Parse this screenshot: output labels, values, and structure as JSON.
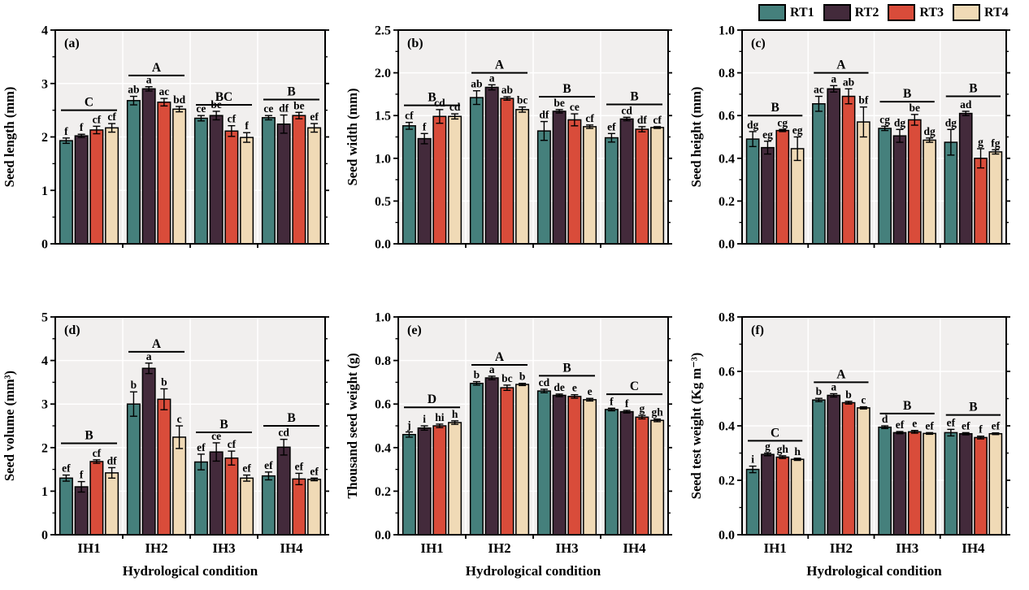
{
  "style": {
    "plot_bg": "#f1efee",
    "grid_color": "#ffffff",
    "axis_color": "#000000"
  },
  "legend": {
    "items": [
      {
        "label": "RT1",
        "color": "#45807C"
      },
      {
        "label": "RT2",
        "color": "#432A3B"
      },
      {
        "label": "RT3",
        "color": "#D94C3A"
      },
      {
        "label": "RT4",
        "color": "#F0DAB6"
      }
    ]
  },
  "shared": {
    "xlabel": "Hydrological condition",
    "categories": [
      "IH1",
      "IH2",
      "IH3",
      "IH4"
    ],
    "series": [
      "RT1",
      "RT2",
      "RT3",
      "RT4"
    ]
  },
  "chart_data": [
    {
      "type": "bar",
      "panel": "(a)",
      "ylabel": "Seed length (mm)",
      "ylim": [
        0,
        4
      ],
      "minor_step": 0.5,
      "yticks": [
        {
          "v": 0,
          "t": "0"
        },
        {
          "v": 1,
          "t": "1"
        },
        {
          "v": 2,
          "t": "2"
        },
        {
          "v": 3,
          "t": "3"
        },
        {
          "v": 4,
          "t": "4"
        }
      ],
      "groups": [
        {
          "category": "IH1",
          "sig_letter": "C",
          "sig_line_y": 2.5,
          "bars": [
            {
              "value": 1.93,
              "err": 0.05,
              "letter": "f"
            },
            {
              "value": 2.02,
              "err": 0.03,
              "letter": "f"
            },
            {
              "value": 2.13,
              "err": 0.07,
              "letter": "cf"
            },
            {
              "value": 2.17,
              "err": 0.08,
              "letter": "cf"
            }
          ]
        },
        {
          "category": "IH2",
          "sig_letter": "A",
          "sig_line_y": 3.15,
          "bars": [
            {
              "value": 2.68,
              "err": 0.08,
              "letter": "ab"
            },
            {
              "value": 2.9,
              "err": 0.04,
              "letter": "a"
            },
            {
              "value": 2.65,
              "err": 0.07,
              "letter": "ac"
            },
            {
              "value": 2.52,
              "err": 0.05,
              "letter": "bd"
            }
          ]
        },
        {
          "category": "IH3",
          "sig_letter": "BC",
          "sig_line_y": 2.6,
          "bars": [
            {
              "value": 2.35,
              "err": 0.05,
              "letter": "ce"
            },
            {
              "value": 2.4,
              "err": 0.08,
              "letter": "be"
            },
            {
              "value": 2.11,
              "err": 0.1,
              "letter": "cf"
            },
            {
              "value": 1.99,
              "err": 0.09,
              "letter": "f"
            }
          ]
        },
        {
          "category": "IH4",
          "sig_letter": "B",
          "sig_line_y": 2.7,
          "bars": [
            {
              "value": 2.36,
              "err": 0.04,
              "letter": "ce"
            },
            {
              "value": 2.24,
              "err": 0.17,
              "letter": "df"
            },
            {
              "value": 2.4,
              "err": 0.06,
              "letter": "be"
            },
            {
              "value": 2.17,
              "err": 0.08,
              "letter": "ef"
            }
          ]
        }
      ]
    },
    {
      "type": "bar",
      "panel": "(b)",
      "ylabel": "Seed width (mm)",
      "ylim": [
        0,
        2.5
      ],
      "minor_step": 0.25,
      "yticks": [
        {
          "v": 0,
          "t": "0.0"
        },
        {
          "v": 0.5,
          "t": "0.5"
        },
        {
          "v": 1,
          "t": "1.0"
        },
        {
          "v": 1.5,
          "t": "1.5"
        },
        {
          "v": 2,
          "t": "2.0"
        },
        {
          "v": 2.5,
          "t": "2.5"
        }
      ],
      "groups": [
        {
          "category": "IH1",
          "sig_letter": "B",
          "sig_line_y": 1.62,
          "bars": [
            {
              "value": 1.38,
              "err": 0.04,
              "letter": "cf"
            },
            {
              "value": 1.23,
              "err": 0.06,
              "letter": "f"
            },
            {
              "value": 1.49,
              "err": 0.08,
              "letter": "cd"
            },
            {
              "value": 1.49,
              "err": 0.03,
              "letter": "cd"
            }
          ]
        },
        {
          "category": "IH2",
          "sig_letter": "A",
          "sig_line_y": 2.0,
          "bars": [
            {
              "value": 1.71,
              "err": 0.08,
              "letter": "ab"
            },
            {
              "value": 1.83,
              "err": 0.03,
              "letter": "a"
            },
            {
              "value": 1.7,
              "err": 0.02,
              "letter": "ab"
            },
            {
              "value": 1.57,
              "err": 0.03,
              "letter": "bc"
            }
          ]
        },
        {
          "category": "IH3",
          "sig_letter": "B",
          "sig_line_y": 1.72,
          "bars": [
            {
              "value": 1.32,
              "err": 0.11,
              "letter": "df"
            },
            {
              "value": 1.55,
              "err": 0.02,
              "letter": "be"
            },
            {
              "value": 1.45,
              "err": 0.07,
              "letter": "ce"
            },
            {
              "value": 1.37,
              "err": 0.02,
              "letter": "cf"
            }
          ]
        },
        {
          "category": "IH4",
          "sig_letter": "B",
          "sig_line_y": 1.63,
          "bars": [
            {
              "value": 1.24,
              "err": 0.05,
              "letter": "ef"
            },
            {
              "value": 1.46,
              "err": 0.02,
              "letter": "cd"
            },
            {
              "value": 1.34,
              "err": 0.03,
              "letter": "df"
            },
            {
              "value": 1.36,
              "err": 0.01,
              "letter": "cf"
            }
          ]
        }
      ]
    },
    {
      "type": "bar",
      "panel": "(c)",
      "ylabel": "Seed height (mm)",
      "ylim": [
        0,
        1.0
      ],
      "minor_step": 0.1,
      "yticks": [
        {
          "v": 0,
          "t": "0.0"
        },
        {
          "v": 0.2,
          "t": "0.2"
        },
        {
          "v": 0.4,
          "t": "0.4"
        },
        {
          "v": 0.6,
          "t": "0.6"
        },
        {
          "v": 0.8,
          "t": "0.8"
        },
        {
          "v": 1,
          "t": "1.0"
        }
      ],
      "groups": [
        {
          "category": "IH1",
          "sig_letter": "B",
          "sig_line_y": 0.6,
          "bars": [
            {
              "value": 0.49,
              "err": 0.035,
              "letter": "dg"
            },
            {
              "value": 0.45,
              "err": 0.03,
              "letter": "eg"
            },
            {
              "value": 0.53,
              "err": 0.005,
              "letter": "cg"
            },
            {
              "value": 0.445,
              "err": 0.055,
              "letter": "eg"
            }
          ]
        },
        {
          "category": "IH2",
          "sig_letter": "A",
          "sig_line_y": 0.8,
          "bars": [
            {
              "value": 0.655,
              "err": 0.035,
              "letter": "ac"
            },
            {
              "value": 0.725,
              "err": 0.015,
              "letter": "a"
            },
            {
              "value": 0.69,
              "err": 0.035,
              "letter": "ab"
            },
            {
              "value": 0.57,
              "err": 0.07,
              "letter": "bf"
            }
          ]
        },
        {
          "category": "IH3",
          "sig_letter": "B",
          "sig_line_y": 0.665,
          "bars": [
            {
              "value": 0.54,
              "err": 0.01,
              "letter": "cg"
            },
            {
              "value": 0.505,
              "err": 0.03,
              "letter": "dg"
            },
            {
              "value": 0.58,
              "err": 0.025,
              "letter": "be"
            },
            {
              "value": 0.485,
              "err": 0.01,
              "letter": "dg"
            }
          ]
        },
        {
          "category": "IH4",
          "sig_letter": "B",
          "sig_line_y": 0.69,
          "bars": [
            {
              "value": 0.475,
              "err": 0.06,
              "letter": "dg"
            },
            {
              "value": 0.61,
              "err": 0.01,
              "letter": "ad"
            },
            {
              "value": 0.4,
              "err": 0.045,
              "letter": "g"
            },
            {
              "value": 0.43,
              "err": 0.01,
              "letter": "fg"
            }
          ]
        }
      ]
    },
    {
      "type": "bar",
      "panel": "(d)",
      "ylabel": "Seed volume (mm³)",
      "ylim": [
        0,
        5
      ],
      "minor_step": 0.5,
      "yticks": [
        {
          "v": 0,
          "t": "0"
        },
        {
          "v": 1,
          "t": "1"
        },
        {
          "v": 2,
          "t": "2"
        },
        {
          "v": 3,
          "t": "3"
        },
        {
          "v": 4,
          "t": "4"
        },
        {
          "v": 5,
          "t": "5"
        }
      ],
      "groups": [
        {
          "category": "IH1",
          "sig_letter": "B",
          "sig_line_y": 2.1,
          "bars": [
            {
              "value": 1.3,
              "err": 0.07,
              "letter": "ef"
            },
            {
              "value": 1.1,
              "err": 0.12,
              "letter": "f"
            },
            {
              "value": 1.68,
              "err": 0.04,
              "letter": "cf"
            },
            {
              "value": 1.42,
              "err": 0.12,
              "letter": "df"
            }
          ]
        },
        {
          "category": "IH2",
          "sig_letter": "A",
          "sig_line_y": 4.2,
          "bars": [
            {
              "value": 3.0,
              "err": 0.28,
              "letter": "b"
            },
            {
              "value": 3.82,
              "err": 0.12,
              "letter": "a"
            },
            {
              "value": 3.11,
              "err": 0.24,
              "letter": "b"
            },
            {
              "value": 2.24,
              "err": 0.26,
              "letter": "c"
            }
          ]
        },
        {
          "category": "IH3",
          "sig_letter": "B",
          "sig_line_y": 2.35,
          "bars": [
            {
              "value": 1.67,
              "err": 0.18,
              "letter": "ef"
            },
            {
              "value": 1.9,
              "err": 0.21,
              "letter": "ce"
            },
            {
              "value": 1.76,
              "err": 0.16,
              "letter": "cf"
            },
            {
              "value": 1.3,
              "err": 0.07,
              "letter": "ef"
            }
          ]
        },
        {
          "category": "IH4",
          "sig_letter": "B",
          "sig_line_y": 2.5,
          "bars": [
            {
              "value": 1.35,
              "err": 0.09,
              "letter": "ef"
            },
            {
              "value": 2.01,
              "err": 0.18,
              "letter": "cd"
            },
            {
              "value": 1.28,
              "err": 0.13,
              "letter": "ef"
            },
            {
              "value": 1.27,
              "err": 0.03,
              "letter": "ef"
            }
          ]
        }
      ]
    },
    {
      "type": "bar",
      "panel": "(e)",
      "ylabel": "Thousand seed weight (g)",
      "ylim": [
        0,
        1.0
      ],
      "minor_step": 0.1,
      "yticks": [
        {
          "v": 0,
          "t": "0.0"
        },
        {
          "v": 0.2,
          "t": "0.2"
        },
        {
          "v": 0.4,
          "t": "0.4"
        },
        {
          "v": 0.6,
          "t": "0.6"
        },
        {
          "v": 0.8,
          "t": "0.8"
        },
        {
          "v": 1,
          "t": "1.0"
        }
      ],
      "groups": [
        {
          "category": "IH1",
          "sig_letter": "D",
          "sig_line_y": 0.585,
          "bars": [
            {
              "value": 0.46,
              "err": 0.012,
              "letter": "j"
            },
            {
              "value": 0.49,
              "err": 0.01,
              "letter": "i"
            },
            {
              "value": 0.5,
              "err": 0.008,
              "letter": "hi"
            },
            {
              "value": 0.515,
              "err": 0.008,
              "letter": "h"
            }
          ]
        },
        {
          "category": "IH2",
          "sig_letter": "A",
          "sig_line_y": 0.78,
          "bars": [
            {
              "value": 0.695,
              "err": 0.008,
              "letter": "b"
            },
            {
              "value": 0.72,
              "err": 0.008,
              "letter": "a"
            },
            {
              "value": 0.675,
              "err": 0.012,
              "letter": "bc"
            },
            {
              "value": 0.69,
              "err": 0.005,
              "letter": "b"
            }
          ]
        },
        {
          "category": "IH3",
          "sig_letter": "B",
          "sig_line_y": 0.73,
          "bars": [
            {
              "value": 0.66,
              "err": 0.008,
              "letter": "cd"
            },
            {
              "value": 0.64,
              "err": 0.006,
              "letter": "de"
            },
            {
              "value": 0.635,
              "err": 0.008,
              "letter": "e"
            },
            {
              "value": 0.62,
              "err": 0.006,
              "letter": "e"
            }
          ]
        },
        {
          "category": "IH4",
          "sig_letter": "C",
          "sig_line_y": 0.645,
          "bars": [
            {
              "value": 0.575,
              "err": 0.006,
              "letter": "f"
            },
            {
              "value": 0.565,
              "err": 0.006,
              "letter": "f"
            },
            {
              "value": 0.54,
              "err": 0.008,
              "letter": "g"
            },
            {
              "value": 0.525,
              "err": 0.006,
              "letter": "gh"
            }
          ]
        }
      ]
    },
    {
      "type": "bar",
      "panel": "(f)",
      "ylabel": "Seed test weight (Kg m⁻³)",
      "ylim": [
        0,
        0.8
      ],
      "minor_step": 0.1,
      "yticks": [
        {
          "v": 0,
          "t": "0.0"
        },
        {
          "v": 0.2,
          "t": "0.2"
        },
        {
          "v": 0.4,
          "t": "0.4"
        },
        {
          "v": 0.6,
          "t": "0.6"
        },
        {
          "v": 0.8,
          "t": "0.8"
        }
      ],
      "groups": [
        {
          "category": "IH1",
          "sig_letter": "C",
          "sig_line_y": 0.345,
          "bars": [
            {
              "value": 0.24,
              "err": 0.012,
              "letter": "i"
            },
            {
              "value": 0.295,
              "err": 0.005,
              "letter": "g"
            },
            {
              "value": 0.285,
              "err": 0.005,
              "letter": "gh"
            },
            {
              "value": 0.277,
              "err": 0.004,
              "letter": "h"
            }
          ]
        },
        {
          "category": "IH2",
          "sig_letter": "A",
          "sig_line_y": 0.56,
          "bars": [
            {
              "value": 0.495,
              "err": 0.006,
              "letter": "b"
            },
            {
              "value": 0.512,
              "err": 0.006,
              "letter": "a"
            },
            {
              "value": 0.485,
              "err": 0.005,
              "letter": "b"
            },
            {
              "value": 0.466,
              "err": 0.004,
              "letter": "c"
            }
          ]
        },
        {
          "category": "IH3",
          "sig_letter": "B",
          "sig_line_y": 0.445,
          "bars": [
            {
              "value": 0.395,
              "err": 0.005,
              "letter": "d"
            },
            {
              "value": 0.375,
              "err": 0.004,
              "letter": "ef"
            },
            {
              "value": 0.378,
              "err": 0.005,
              "letter": "e"
            },
            {
              "value": 0.372,
              "err": 0.003,
              "letter": "ef"
            }
          ]
        },
        {
          "category": "IH4",
          "sig_letter": "B",
          "sig_line_y": 0.44,
          "bars": [
            {
              "value": 0.375,
              "err": 0.012,
              "letter": "ef"
            },
            {
              "value": 0.371,
              "err": 0.004,
              "letter": "ef"
            },
            {
              "value": 0.357,
              "err": 0.005,
              "letter": "f"
            },
            {
              "value": 0.371,
              "err": 0.003,
              "letter": "ef"
            }
          ]
        }
      ]
    }
  ]
}
